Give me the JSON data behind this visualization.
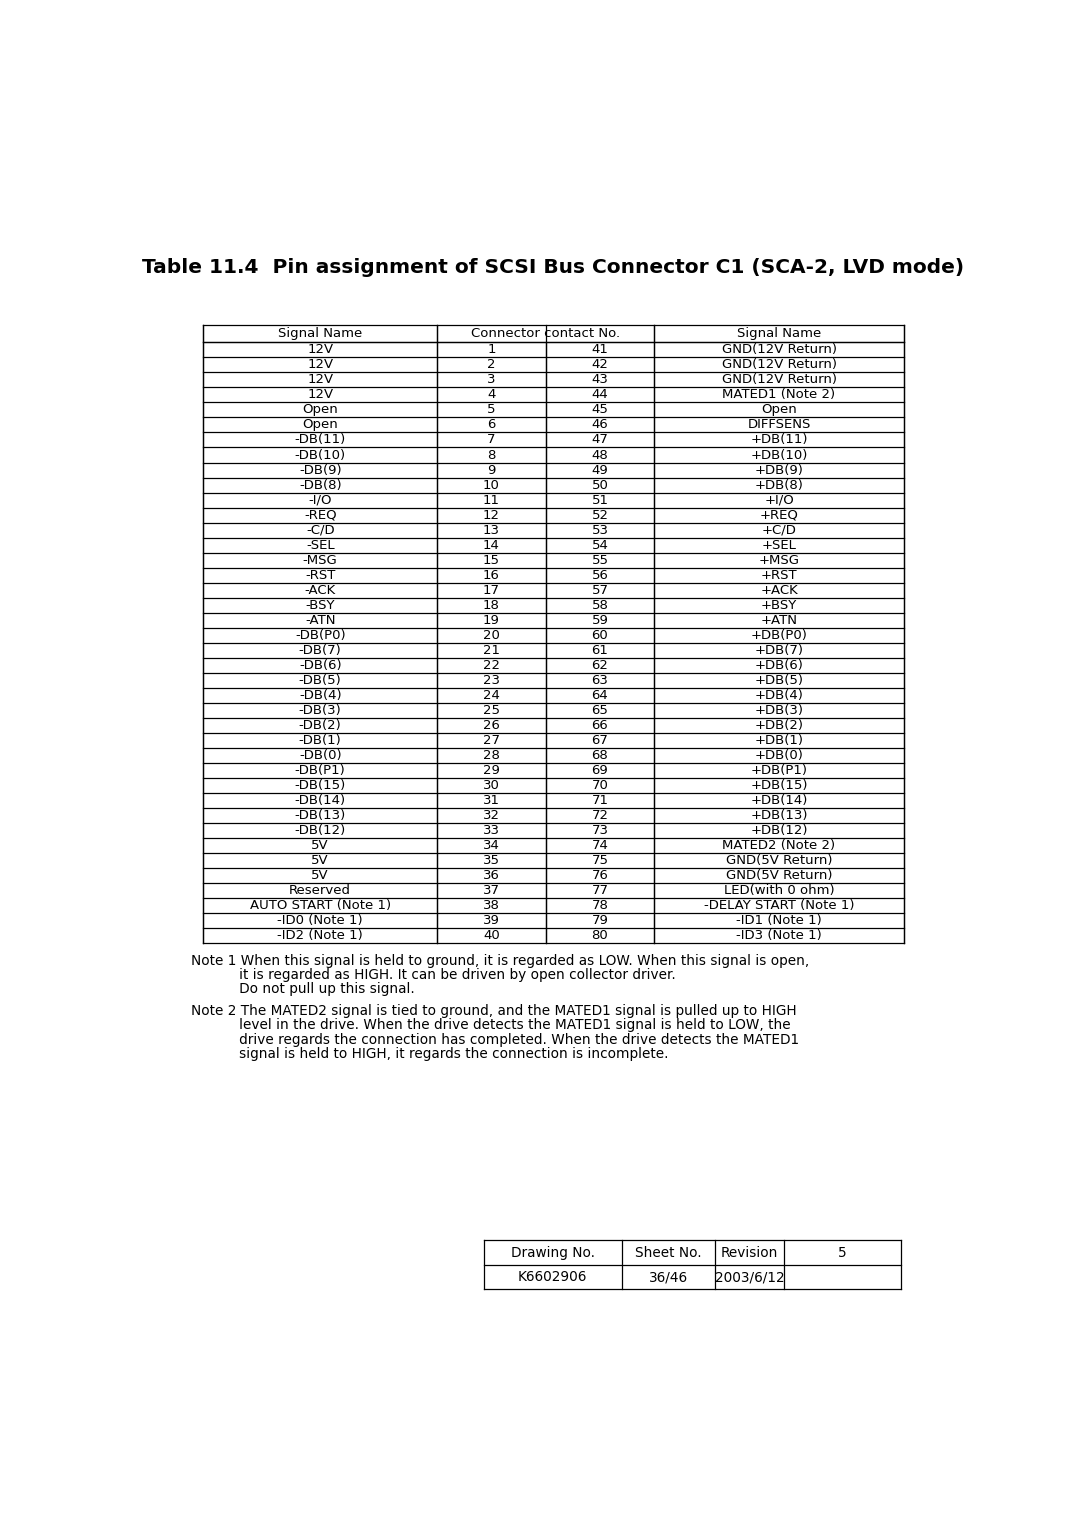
{
  "title": "Table 11.4  Pin assignment of SCSI Bus Connector C1 (SCA-2, LVD mode)",
  "col_headers": [
    "Signal Name",
    "Connector contact No.",
    "Signal Name"
  ],
  "rows": [
    [
      "12V",
      "1",
      "41",
      "GND(12V Return)"
    ],
    [
      "12V",
      "2",
      "42",
      "GND(12V Return)"
    ],
    [
      "12V",
      "3",
      "43",
      "GND(12V Return)"
    ],
    [
      "12V",
      "4",
      "44",
      "MATED1 (Note 2)"
    ],
    [
      "Open",
      "5",
      "45",
      "Open"
    ],
    [
      "Open",
      "6",
      "46",
      "DIFFSENS"
    ],
    [
      "-DB(11)",
      "7",
      "47",
      "+DB(11)"
    ],
    [
      "-DB(10)",
      "8",
      "48",
      "+DB(10)"
    ],
    [
      "-DB(9)",
      "9",
      "49",
      "+DB(9)"
    ],
    [
      "-DB(8)",
      "10",
      "50",
      "+DB(8)"
    ],
    [
      "-I/O",
      "11",
      "51",
      "+I/O"
    ],
    [
      "-REQ",
      "12",
      "52",
      "+REQ"
    ],
    [
      "-C/D",
      "13",
      "53",
      "+C/D"
    ],
    [
      "-SEL",
      "14",
      "54",
      "+SEL"
    ],
    [
      "-MSG",
      "15",
      "55",
      "+MSG"
    ],
    [
      "-RST",
      "16",
      "56",
      "+RST"
    ],
    [
      "-ACK",
      "17",
      "57",
      "+ACK"
    ],
    [
      "-BSY",
      "18",
      "58",
      "+BSY"
    ],
    [
      "-ATN",
      "19",
      "59",
      "+ATN"
    ],
    [
      "-DB(P0)",
      "20",
      "60",
      "+DB(P0)"
    ],
    [
      "-DB(7)",
      "21",
      "61",
      "+DB(7)"
    ],
    [
      "-DB(6)",
      "22",
      "62",
      "+DB(6)"
    ],
    [
      "-DB(5)",
      "23",
      "63",
      "+DB(5)"
    ],
    [
      "-DB(4)",
      "24",
      "64",
      "+DB(4)"
    ],
    [
      "-DB(3)",
      "25",
      "65",
      "+DB(3)"
    ],
    [
      "-DB(2)",
      "26",
      "66",
      "+DB(2)"
    ],
    [
      "-DB(1)",
      "27",
      "67",
      "+DB(1)"
    ],
    [
      "-DB(0)",
      "28",
      "68",
      "+DB(0)"
    ],
    [
      "-DB(P1)",
      "29",
      "69",
      "+DB(P1)"
    ],
    [
      "-DB(15)",
      "30",
      "70",
      "+DB(15)"
    ],
    [
      "-DB(14)",
      "31",
      "71",
      "+DB(14)"
    ],
    [
      "-DB(13)",
      "32",
      "72",
      "+DB(13)"
    ],
    [
      "-DB(12)",
      "33",
      "73",
      "+DB(12)"
    ],
    [
      "5V",
      "34",
      "74",
      "MATED2 (Note 2)"
    ],
    [
      "5V",
      "35",
      "75",
      "GND(5V Return)"
    ],
    [
      "5V",
      "36",
      "76",
      "GND(5V Return)"
    ],
    [
      "Reserved",
      "37",
      "77",
      "LED(with 0 ohm)"
    ],
    [
      "AUTO START (Note 1)",
      "38",
      "78",
      "-DELAY START (Note 1)"
    ],
    [
      "-ID0 (Note 1)",
      "39",
      "79",
      "-ID1 (Note 1)"
    ],
    [
      "-ID2 (Note 1)",
      "40",
      "80",
      "-ID3 (Note 1)"
    ]
  ],
  "note1_lines": [
    "Note 1 When this signal is held to ground, it is regarded as LOW. When this signal is open,",
    "           it is regarded as HIGH. It can be driven by open collector driver.",
    "           Do not pull up this signal."
  ],
  "note2_lines": [
    "Note 2 The MATED2 signal is tied to ground, and the MATED1 signal is pulled up to HIGH",
    "           level in the drive. When the drive detects the MATED1 signal is held to LOW, the",
    "           drive regards the connection has completed. When the drive detects the MATED1",
    "           signal is held to HIGH, it regards the connection is incomplete."
  ],
  "drawing_no": "K6602906",
  "sheet_no": "36/46",
  "revision": "5",
  "date": "2003/6/12",
  "bg_color": "#ffffff",
  "text_color": "#000000",
  "title_fontsize": 14.5,
  "body_fontsize": 9.5,
  "note_fontsize": 9.8
}
